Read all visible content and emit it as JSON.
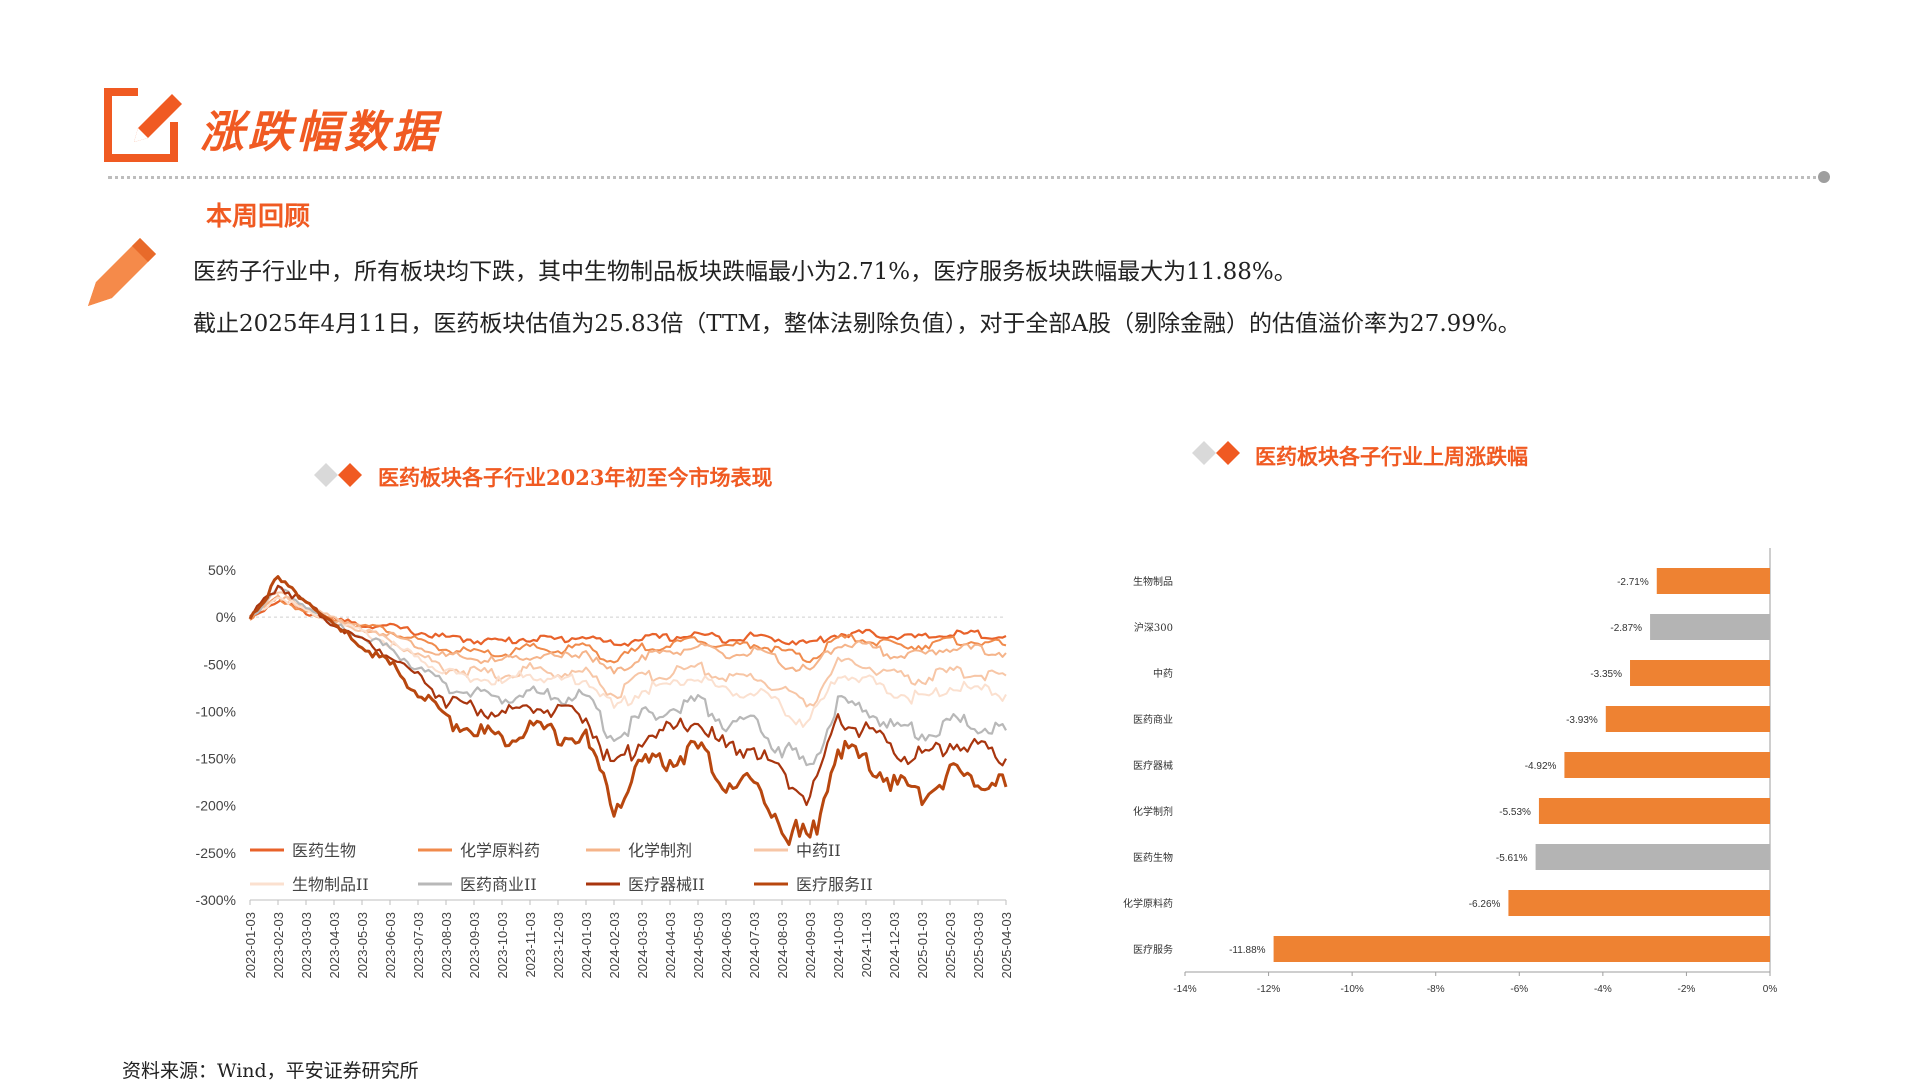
{
  "header": {
    "title": "涨跌幅数据"
  },
  "review": {
    "title": "本周回顾",
    "line1": "医药子行业中，所有板块均下跌，其中生物制品板块跌幅最小为2.71%，医疗服务板块跌幅最大为11.88%。",
    "line2": "截止2025年4月11日，医药板块估值为25.83倍（TTM，整体法剔除负值），对于全部A股（剔除金融）的估值溢价率为27.99%。"
  },
  "colors": {
    "accent": "#f05a22",
    "bar_orange": "#ee8232",
    "bar_gray": "#b4b4b4"
  },
  "chart_data": [
    {
      "type": "line",
      "title": "医药板块各子行业2023年初至今市场表现",
      "ylim": [
        -300,
        50
      ],
      "yticks": [
        "50%",
        "0%",
        "-50%",
        "-100%",
        "-150%",
        "-200%",
        "-250%",
        "-300%"
      ],
      "ytick_values": [
        50,
        0,
        -50,
        -100,
        -150,
        -200,
        -250,
        -300
      ],
      "x": [
        "2023-01-03",
        "2023-02-03",
        "2023-03-03",
        "2023-04-03",
        "2023-05-03",
        "2023-06-03",
        "2023-07-03",
        "2023-08-03",
        "2023-09-03",
        "2023-10-03",
        "2023-11-03",
        "2023-12-03",
        "2024-01-03",
        "2024-02-03",
        "2024-03-03",
        "2024-04-03",
        "2024-05-03",
        "2024-06-03",
        "2024-07-03",
        "2024-08-03",
        "2024-09-03",
        "2024-10-03",
        "2024-11-03",
        "2024-12-03",
        "2025-01-03",
        "2025-02-03",
        "2025-03-03",
        "2025-04-03"
      ],
      "legend_placement": "bottom-left",
      "series": [
        {
          "name": "医药生物",
          "color": "#e8622a",
          "width": 2.2,
          "values": [
            0,
            18,
            5,
            -3,
            -8,
            -10,
            -16,
            -22,
            -24,
            -26,
            -22,
            -24,
            -20,
            -30,
            -22,
            -22,
            -18,
            -23,
            -20,
            -24,
            -28,
            -18,
            -17,
            -20,
            -22,
            -18,
            -18,
            -20
          ]
        },
        {
          "name": "化学原料药",
          "color": "#f08a4b",
          "width": 2,
          "values": [
            0,
            20,
            6,
            -2,
            -9,
            -14,
            -26,
            -34,
            -38,
            -40,
            -32,
            -36,
            -30,
            -48,
            -32,
            -30,
            -22,
            -32,
            -28,
            -36,
            -46,
            -22,
            -24,
            -30,
            -30,
            -25,
            -26,
            -30
          ]
        },
        {
          "name": "化学制剂",
          "color": "#f5b48a",
          "width": 2,
          "values": [
            0,
            24,
            8,
            -4,
            -12,
            -18,
            -30,
            -42,
            -44,
            -48,
            -40,
            -44,
            -36,
            -62,
            -40,
            -38,
            -30,
            -42,
            -36,
            -48,
            -58,
            -28,
            -30,
            -40,
            -40,
            -32,
            -34,
            -38
          ]
        },
        {
          "name": "中药II",
          "color": "#f7c6a6",
          "width": 2,
          "values": [
            0,
            26,
            10,
            -2,
            -14,
            -24,
            -40,
            -54,
            -58,
            -62,
            -54,
            -60,
            -58,
            -82,
            -64,
            -60,
            -52,
            -66,
            -62,
            -78,
            -92,
            -48,
            -52,
            -62,
            -66,
            -58,
            -60,
            -62
          ]
        },
        {
          "name": "生物制品II",
          "color": "#fbe0cf",
          "width": 2,
          "values": [
            0,
            22,
            6,
            -6,
            -16,
            -28,
            -44,
            -58,
            -64,
            -70,
            -60,
            -68,
            -64,
            -98,
            -76,
            -72,
            -62,
            -80,
            -78,
            -98,
            -112,
            -60,
            -66,
            -80,
            -86,
            -74,
            -78,
            -82
          ]
        },
        {
          "name": "医药商业II",
          "color": "#b8b8b8",
          "width": 2.2,
          "values": [
            0,
            30,
            12,
            -8,
            -20,
            -34,
            -54,
            -74,
            -80,
            -88,
            -78,
            -86,
            -84,
            -130,
            -104,
            -98,
            -88,
            -112,
            -112,
            -140,
            -160,
            -90,
            -98,
            -116,
            -124,
            -110,
            -114,
            -120
          ]
        },
        {
          "name": "医疗器械II",
          "color": "#a8350e",
          "width": 2.2,
          "values": [
            0,
            34,
            14,
            -8,
            -24,
            -40,
            -62,
            -88,
            -96,
            -104,
            -92,
            -102,
            -104,
            -162,
            -128,
            -120,
            -110,
            -140,
            -138,
            -170,
            -190,
            -110,
            -120,
            -140,
            -150,
            -132,
            -138,
            -150
          ]
        },
        {
          "name": "医疗服务II",
          "color": "#b8470f",
          "width": 3,
          "values": [
            0,
            40,
            18,
            -10,
            -30,
            -50,
            -80,
            -108,
            -120,
            -130,
            -114,
            -126,
            -130,
            -200,
            -158,
            -150,
            -140,
            -176,
            -176,
            -220,
            -240,
            -140,
            -152,
            -176,
            -190,
            -166,
            -172,
            -180
          ]
        }
      ]
    },
    {
      "type": "bar",
      "orientation": "horizontal",
      "title": "医药板块各子行业上周涨跌幅",
      "categories": [
        "生物制品",
        "沪深300",
        "中药",
        "医药商业",
        "医疗器械",
        "化学制剂",
        "医药生物",
        "化学原料药",
        "医疗服务"
      ],
      "values": [
        -2.71,
        -2.87,
        -3.35,
        -3.93,
        -4.92,
        -5.53,
        -5.61,
        -6.26,
        -11.88
      ],
      "labels": [
        "-2.71%",
        "-2.87%",
        "-3.35%",
        "-3.93%",
        "-4.92%",
        "-5.53%",
        "-5.61%",
        "-6.26%",
        "-11.88%"
      ],
      "highlight": [
        "orange",
        "gray",
        "orange",
        "orange",
        "orange",
        "orange",
        "gray",
        "orange",
        "orange"
      ],
      "xlim": [
        -14,
        0
      ],
      "xticks": [
        "-14%",
        "-12%",
        "-10%",
        "-8%",
        "-6%",
        "-4%",
        "-2%",
        "0%"
      ],
      "xtick_values": [
        -14,
        -12,
        -10,
        -8,
        -6,
        -4,
        -2,
        0
      ]
    }
  ],
  "source": "资料来源：Wind，平安证券研究所"
}
